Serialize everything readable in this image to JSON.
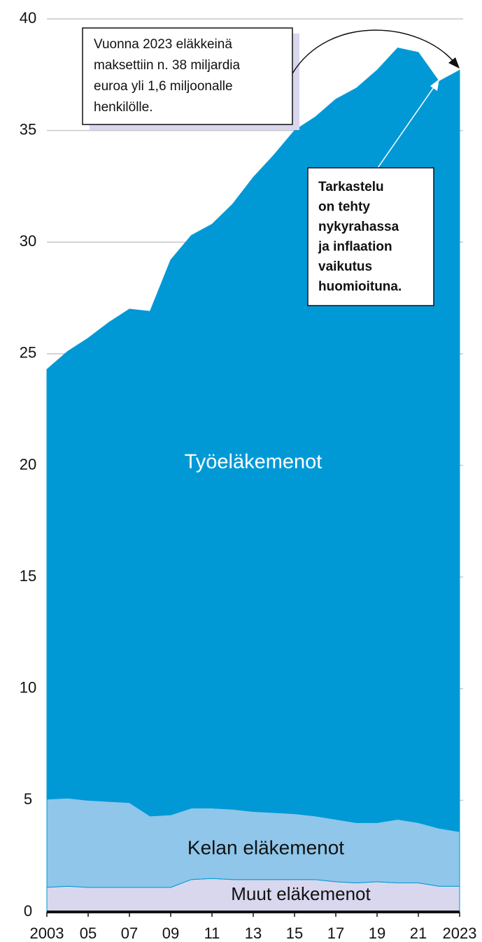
{
  "chart_data": {
    "type": "stacked_area",
    "x": [
      2003,
      2004,
      2005,
      2006,
      2007,
      2008,
      2009,
      2010,
      2011,
      2012,
      2013,
      2014,
      2015,
      2016,
      2017,
      2018,
      2019,
      2020,
      2021,
      2022,
      2023
    ],
    "series": [
      {
        "name": "Muut eläkemenot",
        "color": "#d9d7ee",
        "values": [
          1.1,
          1.15,
          1.1,
          1.1,
          1.1,
          1.1,
          1.1,
          1.45,
          1.5,
          1.45,
          1.45,
          1.45,
          1.45,
          1.45,
          1.35,
          1.3,
          1.35,
          1.3,
          1.3,
          1.15,
          1.15
        ]
      },
      {
        "name": "Kelan eläkemenot",
        "color": "#8fc6ea",
        "values": [
          3.95,
          3.95,
          3.9,
          3.85,
          3.8,
          3.2,
          3.25,
          3.2,
          3.15,
          3.15,
          3.05,
          3.0,
          2.95,
          2.85,
          2.8,
          2.7,
          2.65,
          2.85,
          2.7,
          2.6,
          2.45
        ]
      },
      {
        "name": "Työeläkemenot",
        "color": "#0099d6",
        "values": [
          19.25,
          20.0,
          20.7,
          21.45,
          22.1,
          22.6,
          24.85,
          25.65,
          26.15,
          27.1,
          28.4,
          29.45,
          30.6,
          31.3,
          32.25,
          32.9,
          33.7,
          34.55,
          34.5,
          33.45,
          34.1
        ]
      }
    ],
    "xlim": [
      2003,
      2023
    ],
    "xticks": [
      2003,
      {
        "value": 2005,
        "label": "05"
      },
      {
        "value": 2007,
        "label": "07"
      },
      {
        "value": 2009,
        "label": "09"
      },
      {
        "value": 2011,
        "label": "11"
      },
      {
        "value": 2013,
        "label": "13"
      },
      {
        "value": 2015,
        "label": "15"
      },
      {
        "value": 2017,
        "label": "17"
      },
      {
        "value": 2019,
        "label": "19"
      },
      {
        "value": 2021,
        "label": "21"
      },
      2023
    ],
    "ylim": [
      0,
      40
    ],
    "yticks": [
      0,
      5,
      10,
      15,
      20,
      25,
      30,
      35,
      40
    ],
    "grid": true,
    "annotations": [
      {
        "lines": [
          "Vuonna 2023 eläkkeinä",
          "maksettiin n. 38 miljardia",
          "euroa yli 1,6 miljoonalle",
          "henkilölle."
        ]
      },
      {
        "lines": [
          "Tarkastelu",
          "on tehty",
          "nykyrahassa",
          "ja inflaation",
          "vaikutus",
          "huomioituna."
        ]
      }
    ]
  }
}
